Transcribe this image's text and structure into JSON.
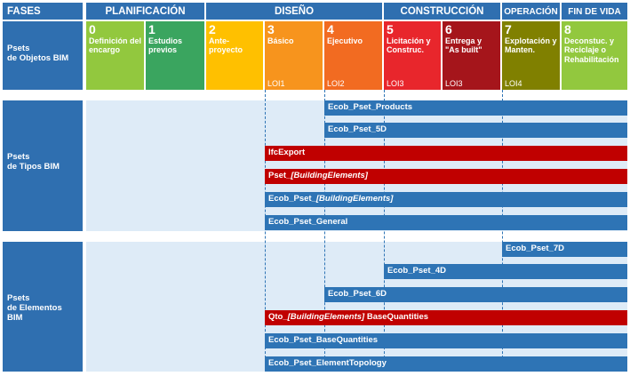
{
  "header": {
    "fases": "FASES",
    "planificacion": "PLANIFICACIÓN",
    "diseno": "DISEÑO",
    "construccion": "CONSTRUCCIÓN",
    "operacion": "OPERACIÓN",
    "fin_de_vida": "FIN DE VIDA"
  },
  "phases": [
    {
      "num": "0",
      "label": "Definición del encargo",
      "loi": "",
      "color": "#92c83e"
    },
    {
      "num": "1",
      "label": "Estudios previos",
      "loi": "",
      "color": "#3aa55f"
    },
    {
      "num": "2",
      "label": "Ante-proyecto",
      "loi": "",
      "color": "#ffc000"
    },
    {
      "num": "3",
      "label": "Básico",
      "loi": "LOI1",
      "color": "#f7941d"
    },
    {
      "num": "4",
      "label": "Ejecutivo",
      "loi": "LOI2",
      "color": "#f26b21"
    },
    {
      "num": "5",
      "label": "Licitación y Construc.",
      "loi": "LOI3",
      "color": "#e8262c"
    },
    {
      "num": "6",
      "label": "Entrega y \"As built\"",
      "loi": "LOI3",
      "color": "#a5151b"
    },
    {
      "num": "7",
      "label": "Explotación y Manten.",
      "loi": "LOI4",
      "color": "#808000"
    },
    {
      "num": "8",
      "label": "Deconstuc. y Reciclaje o Rehabilitación",
      "loi": "",
      "color": "#92c83e"
    }
  ],
  "rows": {
    "objetos": [
      "Psets",
      "de Objetos BIM"
    ],
    "tipos": [
      "Psets",
      "de Tipos BIM"
    ],
    "elementos": [
      "Psets",
      "de Elementos BIM"
    ]
  },
  "bars": {
    "products": "Ecob_Pset_Products",
    "pset5d": "Ecob_Pset_5D",
    "ifcexport": "IfcExport",
    "pset_be_prefix": "Pset_",
    "pset_be_italic": "[BuildingElements]",
    "ecob_be_prefix": "Ecob_Pset_",
    "ecob_be_italic": "[BuildingElements]",
    "general": "Ecob_Pset_General",
    "pset7d": "Ecob_Pset_7D",
    "pset4d": "Ecob_Pset_4D",
    "pset6d": "Ecob_Pset_6D",
    "qto_prefix": "Qto_",
    "qto_italic": "[BuildingElements]",
    "qto_suffix": " BaseQuantities",
    "basequantities": "Ecob_Pset_BaseQuantities",
    "topology": "Ecob_Pset_ElementTopology"
  },
  "colors": {
    "header_blue": "#2f6fb0",
    "bar_blue": "#2e74b5",
    "bar_red": "#c00000",
    "pane": "#deebf7"
  }
}
